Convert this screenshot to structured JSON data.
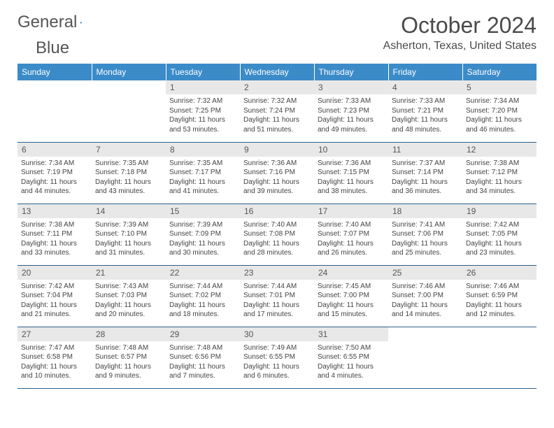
{
  "logo": {
    "text1": "General",
    "text2": "Blue"
  },
  "title": "October 2024",
  "location": "Asherton, Texas, United States",
  "header_bg": "#3b8bc9",
  "daynum_bg": "#e8e8e8",
  "border_color": "#2c5f8d",
  "days_of_week": [
    "Sunday",
    "Monday",
    "Tuesday",
    "Wednesday",
    "Thursday",
    "Friday",
    "Saturday"
  ],
  "weeks": [
    [
      null,
      null,
      {
        "n": "1",
        "sr": "Sunrise: 7:32 AM",
        "ss": "Sunset: 7:25 PM",
        "dl": "Daylight: 11 hours and 53 minutes."
      },
      {
        "n": "2",
        "sr": "Sunrise: 7:32 AM",
        "ss": "Sunset: 7:24 PM",
        "dl": "Daylight: 11 hours and 51 minutes."
      },
      {
        "n": "3",
        "sr": "Sunrise: 7:33 AM",
        "ss": "Sunset: 7:23 PM",
        "dl": "Daylight: 11 hours and 49 minutes."
      },
      {
        "n": "4",
        "sr": "Sunrise: 7:33 AM",
        "ss": "Sunset: 7:21 PM",
        "dl": "Daylight: 11 hours and 48 minutes."
      },
      {
        "n": "5",
        "sr": "Sunrise: 7:34 AM",
        "ss": "Sunset: 7:20 PM",
        "dl": "Daylight: 11 hours and 46 minutes."
      }
    ],
    [
      {
        "n": "6",
        "sr": "Sunrise: 7:34 AM",
        "ss": "Sunset: 7:19 PM",
        "dl": "Daylight: 11 hours and 44 minutes."
      },
      {
        "n": "7",
        "sr": "Sunrise: 7:35 AM",
        "ss": "Sunset: 7:18 PM",
        "dl": "Daylight: 11 hours and 43 minutes."
      },
      {
        "n": "8",
        "sr": "Sunrise: 7:35 AM",
        "ss": "Sunset: 7:17 PM",
        "dl": "Daylight: 11 hours and 41 minutes."
      },
      {
        "n": "9",
        "sr": "Sunrise: 7:36 AM",
        "ss": "Sunset: 7:16 PM",
        "dl": "Daylight: 11 hours and 39 minutes."
      },
      {
        "n": "10",
        "sr": "Sunrise: 7:36 AM",
        "ss": "Sunset: 7:15 PM",
        "dl": "Daylight: 11 hours and 38 minutes."
      },
      {
        "n": "11",
        "sr": "Sunrise: 7:37 AM",
        "ss": "Sunset: 7:14 PM",
        "dl": "Daylight: 11 hours and 36 minutes."
      },
      {
        "n": "12",
        "sr": "Sunrise: 7:38 AM",
        "ss": "Sunset: 7:12 PM",
        "dl": "Daylight: 11 hours and 34 minutes."
      }
    ],
    [
      {
        "n": "13",
        "sr": "Sunrise: 7:38 AM",
        "ss": "Sunset: 7:11 PM",
        "dl": "Daylight: 11 hours and 33 minutes."
      },
      {
        "n": "14",
        "sr": "Sunrise: 7:39 AM",
        "ss": "Sunset: 7:10 PM",
        "dl": "Daylight: 11 hours and 31 minutes."
      },
      {
        "n": "15",
        "sr": "Sunrise: 7:39 AM",
        "ss": "Sunset: 7:09 PM",
        "dl": "Daylight: 11 hours and 30 minutes."
      },
      {
        "n": "16",
        "sr": "Sunrise: 7:40 AM",
        "ss": "Sunset: 7:08 PM",
        "dl": "Daylight: 11 hours and 28 minutes."
      },
      {
        "n": "17",
        "sr": "Sunrise: 7:40 AM",
        "ss": "Sunset: 7:07 PM",
        "dl": "Daylight: 11 hours and 26 minutes."
      },
      {
        "n": "18",
        "sr": "Sunrise: 7:41 AM",
        "ss": "Sunset: 7:06 PM",
        "dl": "Daylight: 11 hours and 25 minutes."
      },
      {
        "n": "19",
        "sr": "Sunrise: 7:42 AM",
        "ss": "Sunset: 7:05 PM",
        "dl": "Daylight: 11 hours and 23 minutes."
      }
    ],
    [
      {
        "n": "20",
        "sr": "Sunrise: 7:42 AM",
        "ss": "Sunset: 7:04 PM",
        "dl": "Daylight: 11 hours and 21 minutes."
      },
      {
        "n": "21",
        "sr": "Sunrise: 7:43 AM",
        "ss": "Sunset: 7:03 PM",
        "dl": "Daylight: 11 hours and 20 minutes."
      },
      {
        "n": "22",
        "sr": "Sunrise: 7:44 AM",
        "ss": "Sunset: 7:02 PM",
        "dl": "Daylight: 11 hours and 18 minutes."
      },
      {
        "n": "23",
        "sr": "Sunrise: 7:44 AM",
        "ss": "Sunset: 7:01 PM",
        "dl": "Daylight: 11 hours and 17 minutes."
      },
      {
        "n": "24",
        "sr": "Sunrise: 7:45 AM",
        "ss": "Sunset: 7:00 PM",
        "dl": "Daylight: 11 hours and 15 minutes."
      },
      {
        "n": "25",
        "sr": "Sunrise: 7:46 AM",
        "ss": "Sunset: 7:00 PM",
        "dl": "Daylight: 11 hours and 14 minutes."
      },
      {
        "n": "26",
        "sr": "Sunrise: 7:46 AM",
        "ss": "Sunset: 6:59 PM",
        "dl": "Daylight: 11 hours and 12 minutes."
      }
    ],
    [
      {
        "n": "27",
        "sr": "Sunrise: 7:47 AM",
        "ss": "Sunset: 6:58 PM",
        "dl": "Daylight: 11 hours and 10 minutes."
      },
      {
        "n": "28",
        "sr": "Sunrise: 7:48 AM",
        "ss": "Sunset: 6:57 PM",
        "dl": "Daylight: 11 hours and 9 minutes."
      },
      {
        "n": "29",
        "sr": "Sunrise: 7:48 AM",
        "ss": "Sunset: 6:56 PM",
        "dl": "Daylight: 11 hours and 7 minutes."
      },
      {
        "n": "30",
        "sr": "Sunrise: 7:49 AM",
        "ss": "Sunset: 6:55 PM",
        "dl": "Daylight: 11 hours and 6 minutes."
      },
      {
        "n": "31",
        "sr": "Sunrise: 7:50 AM",
        "ss": "Sunset: 6:55 PM",
        "dl": "Daylight: 11 hours and 4 minutes."
      },
      null,
      null
    ]
  ]
}
